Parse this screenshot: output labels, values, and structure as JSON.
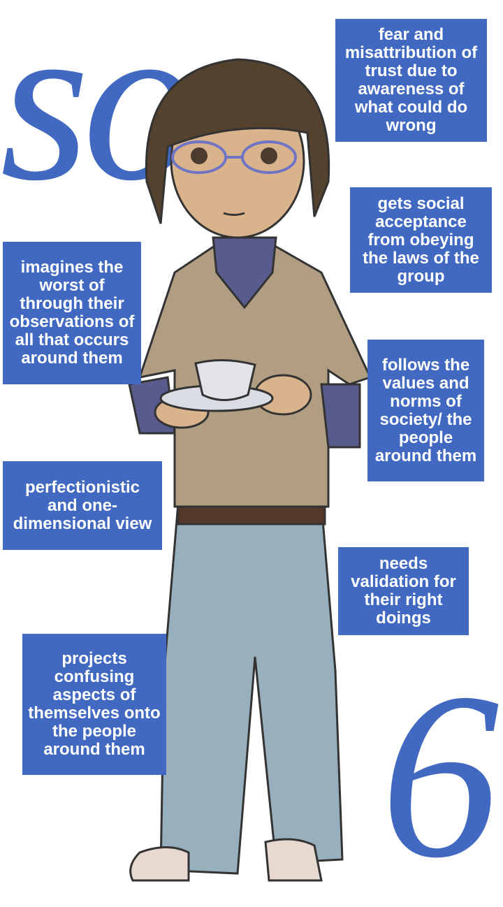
{
  "title": {
    "letters": "so",
    "number": "6"
  },
  "notes": {
    "fear": "fear and misattribution of trust due to awareness of what could do wrong",
    "acceptance": "gets social acceptance from obeying the laws of the group",
    "imagines": "imagines the worst of through their observations of all that occurs around them",
    "values": "follows the values and norms of society/ the people around them",
    "perfectionistic": "perfectionistic and one-dimensional view",
    "validation": "needs validation for their right doings",
    "projects": "projects confusing aspects of themselves onto the people around them"
  },
  "colors": {
    "accent": "#4169c1",
    "shirt": "#b19e82",
    "jeans": "#98afbd",
    "hair": "#55422e",
    "skin": "#d9b38c",
    "sleeve": "#595a8e"
  }
}
